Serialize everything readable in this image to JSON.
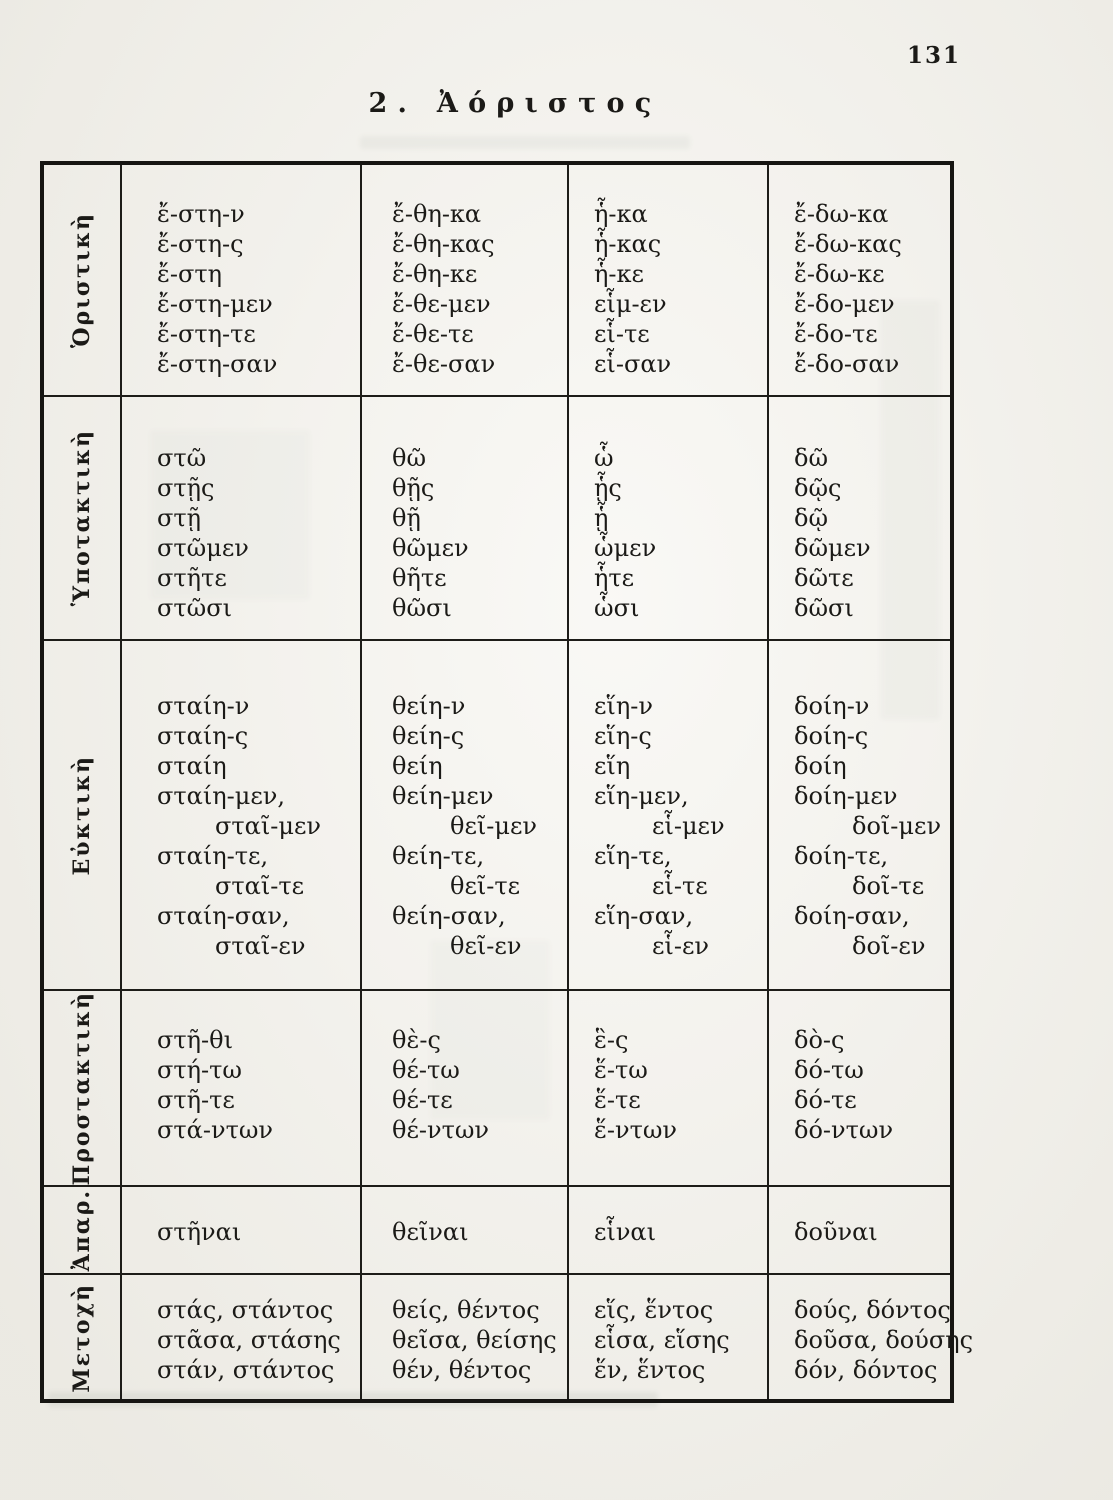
{
  "page_number": "131",
  "title": "2. Ἀόριστος",
  "table": {
    "rows": [
      {
        "label": "Ὁριστικὴ",
        "cols": [
          [
            "ἔ-στη-ν",
            "ἔ-στη-ς",
            "ἔ-στη",
            "ἔ-στη-μεν",
            "ἔ-στη-τε",
            "ἔ-στη-σαν"
          ],
          [
            "ἔ-θη-κα",
            "ἔ-θη-κας",
            "ἔ-θη-κε",
            "ἔ-θε-μεν",
            "ἔ-θε-τε",
            "ἔ-θε-σαν"
          ],
          [
            "ἧ-κα",
            "ἧ-κας",
            "ἧ-κε",
            "εἷμ-εν",
            "εἷ-τε",
            "εἷ-σαν"
          ],
          [
            "ἔ-δω-κα",
            "ἔ-δω-κας",
            "ἔ-δω-κε",
            "ἔ-δο-μεν",
            "ἔ-δο-τε",
            "ἔ-δο-σαν"
          ]
        ]
      },
      {
        "label": "Ὑποτακτικὴ",
        "cols": [
          [
            "στῶ",
            "στῇς",
            "στῇ",
            "στῶμεν",
            "στῆτε",
            "στῶσι"
          ],
          [
            "θῶ",
            "θῇς",
            "θῇ",
            "θῶμεν",
            "θῆτε",
            "θῶσι"
          ],
          [
            "ὧ",
            "ᾗς",
            "ᾗ",
            "ὧμεν",
            "ἧτε",
            "ὧσι"
          ],
          [
            "δῶ",
            "δῷς",
            "δῷ",
            "δῶμεν",
            "δῶτε",
            "δῶσι"
          ]
        ]
      },
      {
        "label": "Εὐκτικὴ",
        "cols": [
          [
            "σταίη-ν",
            "σταίη-ς",
            "σταίη",
            "σταίη-μεν,",
            "    σταῖ-μεν",
            "σταίη-τε,",
            "    σταῖ-τε",
            "σταίη-σαν,",
            "    σταῖ-εν"
          ],
          [
            "θείη-ν",
            "θείη-ς",
            "θείη",
            "θείη-μεν",
            "    θεῖ-μεν",
            "θείη-τε,",
            "    θεῖ-τε",
            "θείη-σαν,",
            "    θεῖ-εν"
          ],
          [
            "εἵη-ν",
            "εἵη-ς",
            "εἵη",
            "εἵη-μεν,",
            "    εἷ-μεν",
            "εἵη-τε,",
            "    εἷ-τε",
            "εἵη-σαν,",
            "    εἷ-εν"
          ],
          [
            "δοίη-ν",
            "δοίη-ς",
            "δοίη",
            "δοίη-μεν",
            "    δοῖ-μεν",
            "δοίη-τε,",
            "    δοῖ-τε",
            "δοίη-σαν,",
            "    δοῖ-εν"
          ]
        ]
      },
      {
        "label": "Προστακτικὴ",
        "cols": [
          [
            "στῆ-θι",
            "στή-τω",
            "στῆ-τε",
            "στά-ντων"
          ],
          [
            "θὲ-ς",
            "θέ-τω",
            "θέ-τε",
            "θέ-ντων"
          ],
          [
            "ἓ-ς",
            "ἕ-τω",
            "ἕ-τε",
            "ἕ-ντων"
          ],
          [
            "δὸ-ς",
            "δό-τω",
            "δό-τε",
            "δό-ντων"
          ]
        ]
      },
      {
        "label": "Ἀπαρ.",
        "cols": [
          [
            "στῆναι"
          ],
          [
            "θεῖναι"
          ],
          [
            "εἷναι"
          ],
          [
            "δοῦναι"
          ]
        ]
      },
      {
        "label": "Μετοχὴ",
        "cols": [
          [
            "στάς, στάντος",
            "στᾶσα, στάσης",
            "στάν, στάντος"
          ],
          [
            "θείς, θέντος",
            "θεῖσα, θείσης",
            "θέν, θέντος"
          ],
          [
            "εἵς, ἕντος",
            "εἷσα, εἵσης",
            "ἕν, ἕντος"
          ],
          [
            "δούς, δόντος",
            "δοῦσα, δούσης",
            "δόν, δόντος"
          ]
        ]
      }
    ]
  }
}
